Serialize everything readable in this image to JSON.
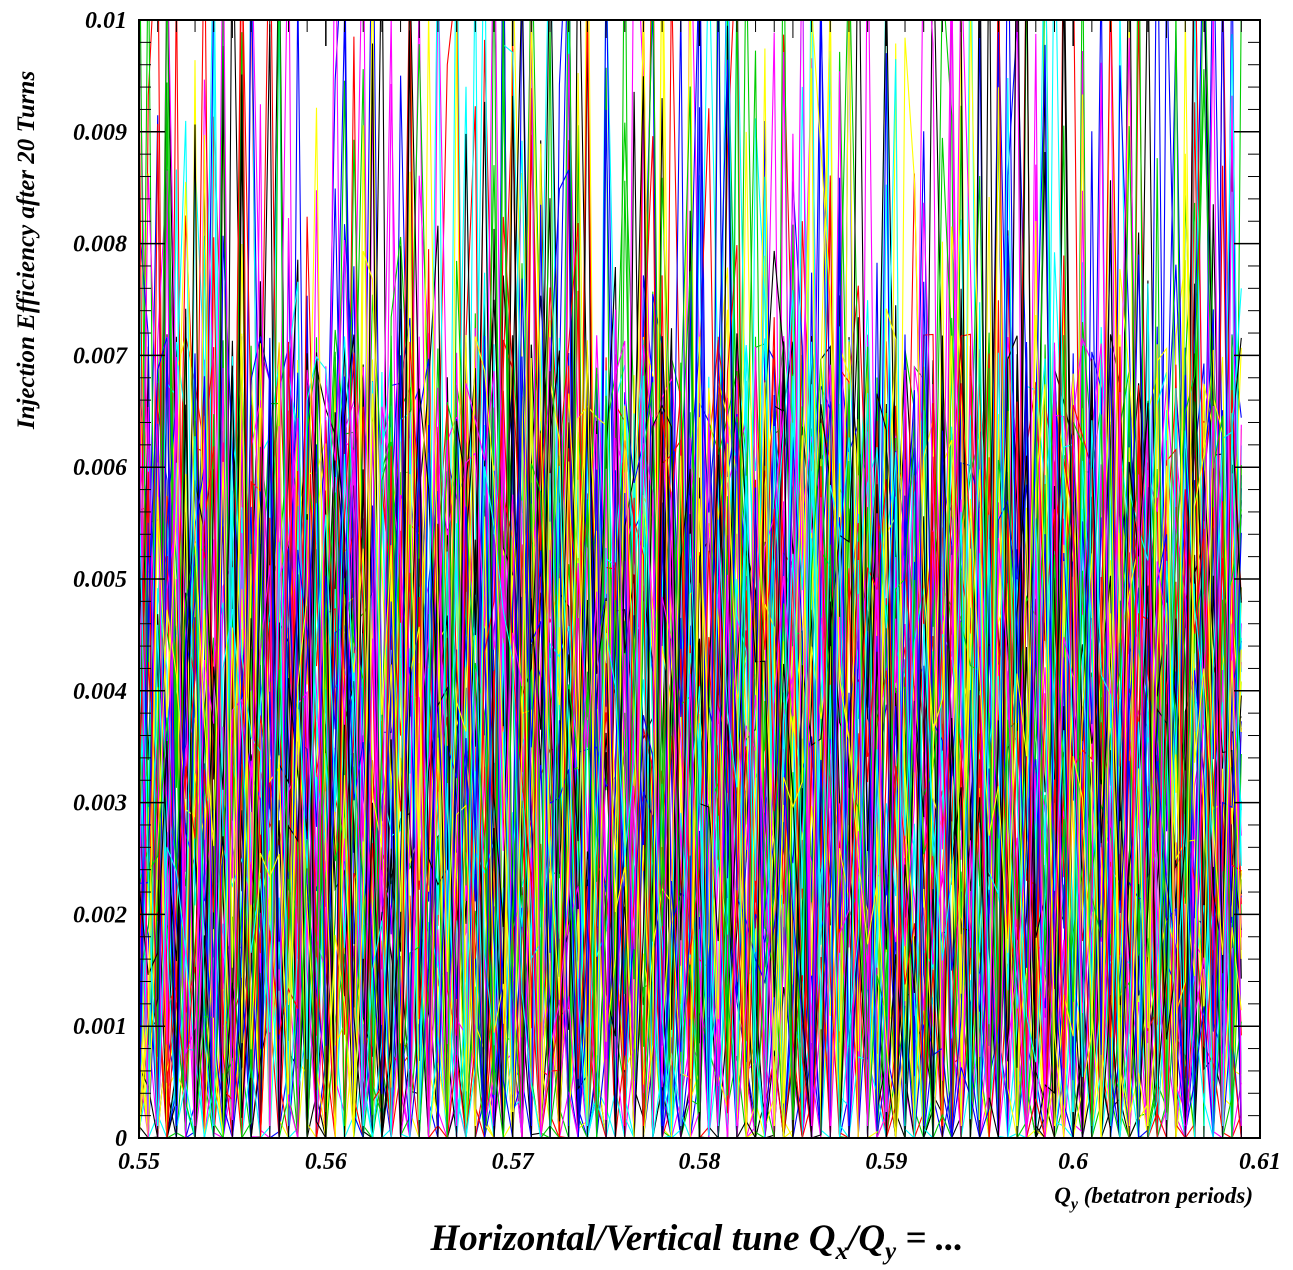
{
  "chart_data": {
    "type": "line",
    "ylabel": "Injection Efficiency after 20 Turns",
    "xlabel_sub": {
      "symbol": "Q",
      "subscript": "y",
      "text": " (betatron periods)"
    },
    "xlabel_main": {
      "prefix": "Horizontal/Vertical tune ",
      "q1": "Q",
      "q1_sub": "x",
      "slash": "/",
      "q2": "Q",
      "q2_sub": "y",
      "suffix": " = ..."
    },
    "xlim": [
      0.55,
      0.61
    ],
    "ylim": [
      0,
      0.01
    ],
    "x_ticks": [
      "0.55",
      "0.56",
      "0.57",
      "0.58",
      "0.59",
      "0.6",
      "0.61"
    ],
    "y_ticks": [
      "0",
      "0.001",
      "0.002",
      "0.003",
      "0.004",
      "0.005",
      "0.006",
      "0.007",
      "0.008",
      "0.009",
      "0.01"
    ],
    "x_step": 0.0005,
    "series_count": 70,
    "series_colors": [
      "#ff0000",
      "#00cc00",
      "#0000ff",
      "#000000",
      "#ff00ff",
      "#00ffff",
      "#ffff00"
    ],
    "grid": false,
    "legend": "none"
  }
}
